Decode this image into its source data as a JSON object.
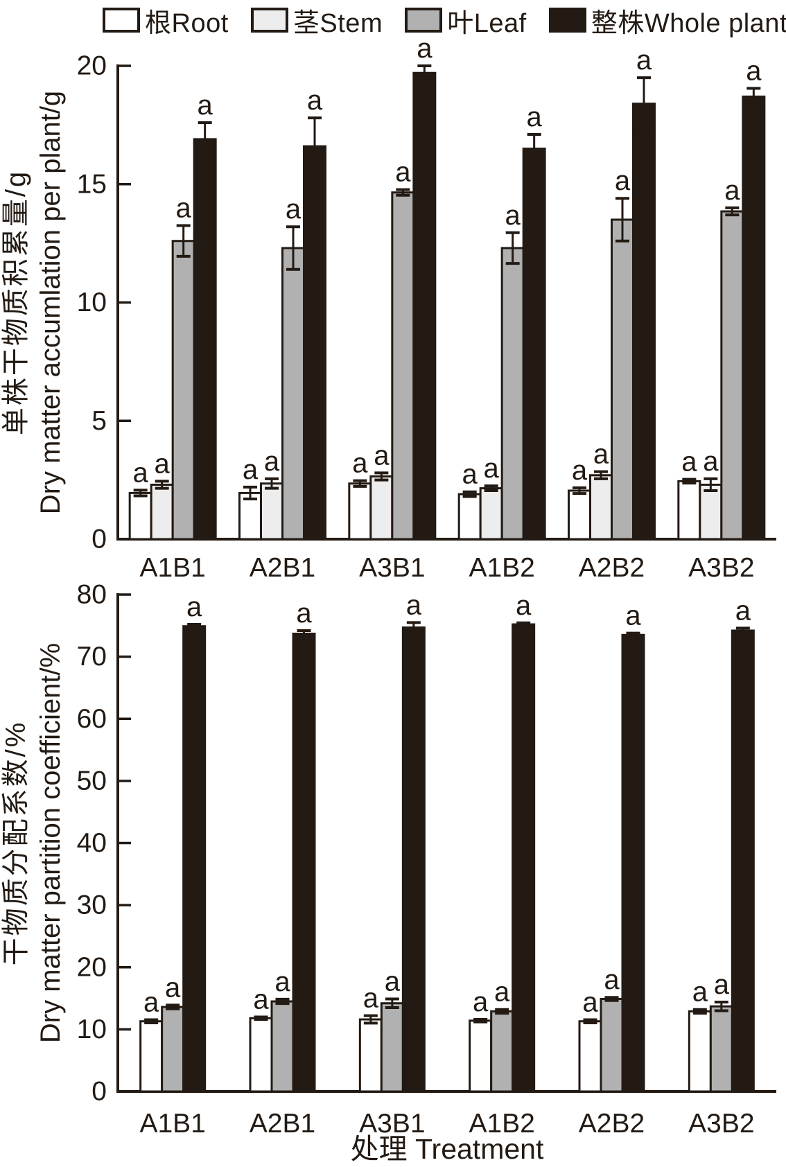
{
  "figure": {
    "ink": "#231a13",
    "background": "#ffffff"
  },
  "legend": {
    "items": [
      {
        "label": "根Root",
        "color": "#ffffff"
      },
      {
        "label": "茎Stem",
        "color": "#ededed"
      },
      {
        "label": "叶Leaf",
        "color": "#b1b1b1"
      },
      {
        "label": "整株Whole plant",
        "color": "#231a13"
      }
    ]
  },
  "chart_data": [
    {
      "type": "bar",
      "panel": "top",
      "ylabel_zh": "单株干物质积累量/g",
      "ylabel_en": "Dry matter accumlation per plant/g",
      "categories": [
        "A1B1",
        "A2B1",
        "A3B1",
        "A1B2",
        "A2B2",
        "A3B2"
      ],
      "ylim": [
        0,
        20
      ],
      "ytick_step": 5,
      "grid": false,
      "legend_position": "top",
      "sig_letter": "a",
      "series": [
        {
          "name": "根Root",
          "color": "#ffffff",
          "values": [
            1.95,
            1.95,
            2.35,
            1.9,
            2.05,
            2.45
          ],
          "errors": [
            0.12,
            0.25,
            0.12,
            0.1,
            0.12,
            0.08
          ]
        },
        {
          "name": "茎Stem",
          "color": "#ededed",
          "values": [
            2.3,
            2.35,
            2.65,
            2.15,
            2.7,
            2.3
          ],
          "errors": [
            0.15,
            0.2,
            0.15,
            0.1,
            0.15,
            0.25
          ]
        },
        {
          "name": "叶Leaf",
          "color": "#b1b1b1",
          "values": [
            12.6,
            12.3,
            14.65,
            12.3,
            13.5,
            13.85
          ],
          "errors": [
            0.65,
            0.9,
            0.12,
            0.65,
            0.9,
            0.15
          ]
        },
        {
          "name": "整株Whole plant",
          "color": "#231a13",
          "values": [
            16.9,
            16.6,
            19.7,
            16.5,
            18.4,
            18.7
          ],
          "errors": [
            0.7,
            1.2,
            0.3,
            0.6,
            1.1,
            0.35
          ]
        }
      ]
    },
    {
      "type": "bar",
      "panel": "bottom",
      "ylabel_zh": "干物质分配系数/%",
      "ylabel_en": "Dry matter partition coefficient/%",
      "xlabel": "处理 Treatment",
      "categories": [
        "A1B1",
        "A2B1",
        "A3B1",
        "A1B2",
        "A2B2",
        "A3B2"
      ],
      "ylim": [
        0,
        80
      ],
      "ytick_step": 10,
      "grid": false,
      "sig_letter": "a",
      "series": [
        {
          "name": "根Root",
          "color": "#ffffff",
          "values": [
            11.3,
            11.8,
            11.6,
            11.4,
            11.3,
            12.9
          ],
          "errors": [
            0.25,
            0.2,
            0.6,
            0.2,
            0.25,
            0.3
          ]
        },
        {
          "name": "叶Leaf",
          "color": "#b1b1b1",
          "values": [
            13.6,
            14.5,
            14.2,
            12.9,
            14.9,
            13.7
          ],
          "errors": [
            0.3,
            0.35,
            0.7,
            0.3,
            0.25,
            0.7
          ]
        },
        {
          "name": "整株Whole plant",
          "color": "#231a13",
          "values": [
            74.9,
            73.7,
            74.7,
            75.2,
            73.5,
            74.2
          ],
          "errors": [
            0.3,
            0.5,
            0.8,
            0.25,
            0.3,
            0.4
          ]
        }
      ]
    }
  ]
}
